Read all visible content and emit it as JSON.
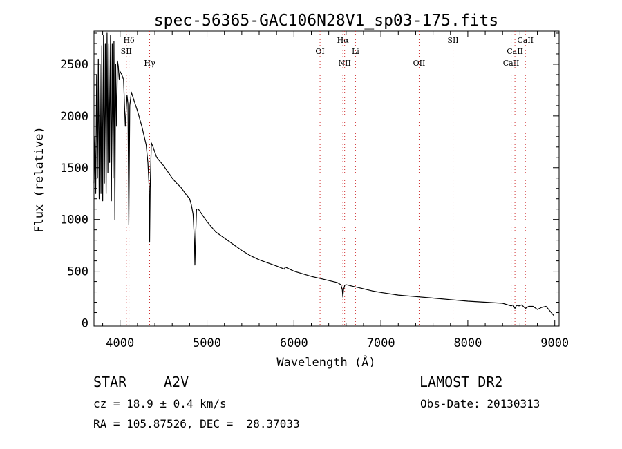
{
  "chart_data": {
    "type": "line",
    "title": "spec-56365-GAC106N28V1_sp03-175.fits",
    "xlabel": "Wavelength (Å)",
    "ylabel": "Flux (relative)",
    "xlim": [
      3700,
      9050
    ],
    "ylim": [
      -30,
      2820
    ],
    "xticks": [
      4000,
      5000,
      6000,
      7000,
      8000,
      9000
    ],
    "yticks": [
      0,
      500,
      1000,
      1500,
      2000,
      2500
    ],
    "grid": false,
    "series": [
      {
        "x": [
          3700,
          3710,
          3720,
          3730,
          3740,
          3750,
          3760,
          3770,
          3780,
          3790,
          3800,
          3810,
          3820,
          3830,
          3840,
          3850,
          3860,
          3870,
          3880,
          3890,
          3900,
          3910,
          3920,
          3930,
          3940,
          3950,
          3960,
          3970,
          3980,
          3990,
          4000,
          4020,
          4040,
          4060,
          4080,
          4090,
          4101,
          4112,
          4130,
          4160,
          4200,
          4250,
          4300,
          4320,
          4335,
          4340,
          4346,
          4360,
          4380,
          4420,
          4470,
          4500,
          4550,
          4600,
          4650,
          4700,
          4750,
          4800,
          4820,
          4840,
          4855,
          4861,
          4867,
          4880,
          4900,
          4950,
          5000,
          5100,
          5200,
          5300,
          5400,
          5500,
          5600,
          5700,
          5800,
          5890,
          5900,
          6000,
          6100,
          6200,
          6300,
          6400,
          6500,
          6540,
          6556,
          6563,
          6570,
          6585,
          6600,
          6700,
          6800,
          6900,
          7000,
          7200,
          7400,
          7600,
          7800,
          8000,
          8200,
          8400,
          8498,
          8520,
          8542,
          8560,
          8590,
          8620,
          8662,
          8700,
          8750,
          8800,
          8850,
          8900,
          8950,
          8990
        ],
        "y": [
          1350,
          1800,
          1250,
          2400,
          1400,
          2550,
          1200,
          2500,
          1250,
          2680,
          1180,
          2780,
          1350,
          2700,
          1250,
          2800,
          1450,
          2700,
          1550,
          2780,
          1180,
          2700,
          1400,
          2720,
          1000,
          2500,
          1900,
          2530,
          2480,
          2350,
          2430,
          2400,
          2350,
          1900,
          2200,
          2120,
          950,
          2100,
          2230,
          2150,
          2050,
          1900,
          1720,
          1550,
          1300,
          780,
          1300,
          1740,
          1700,
          1600,
          1550,
          1520,
          1460,
          1400,
          1350,
          1310,
          1250,
          1200,
          1140,
          1050,
          800,
          560,
          780,
          1100,
          1100,
          1040,
          980,
          880,
          820,
          760,
          700,
          650,
          610,
          580,
          550,
          520,
          540,
          500,
          475,
          450,
          430,
          410,
          390,
          370,
          320,
          250,
          320,
          365,
          370,
          350,
          330,
          310,
          295,
          270,
          255,
          240,
          225,
          210,
          200,
          190,
          165,
          175,
          140,
          170,
          165,
          175,
          140,
          160,
          160,
          130,
          150,
          160,
          110,
          70
        ]
      }
    ],
    "line_markers": [
      {
        "label": "Hδ",
        "x": 4102
      },
      {
        "label": "SII",
        "x": 4072
      },
      {
        "label": "Hγ",
        "x": 4340
      },
      {
        "label": "OI",
        "x": 6300
      },
      {
        "label": "Hα",
        "x": 6563
      },
      {
        "label": "NII",
        "x": 6583
      },
      {
        "label": "Li",
        "x": 6708
      },
      {
        "label": "OII",
        "x": 7440
      },
      {
        "label": "SII",
        "x": 7830
      },
      {
        "label": "CaII",
        "x": 8498
      },
      {
        "label": "CaII",
        "x": 8542
      },
      {
        "label": "CaII",
        "x": 8662
      }
    ]
  },
  "info": {
    "object_type": "STAR",
    "subclass": "A2V",
    "survey": "LAMOST DR2",
    "redshift_text": "cz = 18.9 ± 0.4 km/s",
    "obs_date_text": "Obs-Date: 20130313",
    "coords_text": "RA = 105.87526, DEC =  28.37033"
  }
}
